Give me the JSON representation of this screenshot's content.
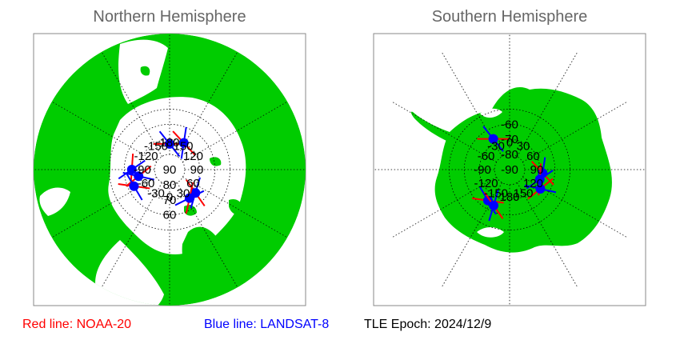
{
  "colors": {
    "land": "#00cc00",
    "water": "#ffffff",
    "grid": "#000000",
    "frame": "#888888",
    "noaa20": "#ff0000",
    "landsat8": "#0000ff",
    "satellite_dot": "#0000ff"
  },
  "north": {
    "title": "Northern Hemisphere",
    "lon_labels": [
      "180",
      "150",
      "-150",
      "120",
      "-120",
      "90",
      "-90",
      "60",
      "-60",
      "30",
      "-30",
      "0"
    ],
    "lat_labels": [
      "90",
      "80",
      "70",
      "60"
    ],
    "satellites": [
      {
        "lon": 180,
        "lat": 73
      },
      {
        "lon": 152,
        "lat": 70
      },
      {
        "lon": -90,
        "lat": 65
      },
      {
        "lon": -78,
        "lat": 69
      },
      {
        "lon": -65,
        "lat": 64
      },
      {
        "lon": 48,
        "lat": 67
      },
      {
        "lon": 35,
        "lat": 67
      }
    ]
  },
  "south": {
    "title": "Southern Hemisphere",
    "lon_labels": [
      "0",
      "30",
      "-30",
      "60",
      "-60",
      "90",
      "-90",
      "120",
      "-120",
      "150",
      "-150",
      "180"
    ],
    "lat_labels": [
      "-90",
      "-80",
      "-70",
      "-60"
    ],
    "satellites": [
      {
        "lon": -28,
        "lat": -67
      },
      {
        "lon": 96,
        "lat": -68
      },
      {
        "lon": 108,
        "lat": -69
      },
      {
        "lon": 122,
        "lat": -66
      },
      {
        "lon": -145,
        "lat": -65
      },
      {
        "lon": -156,
        "lat": -64
      }
    ]
  },
  "legend": {
    "red_label": "Red line: NOAA-20",
    "blue_label": "Blue line: LANDSAT-8",
    "epoch": "TLE Epoch: 2024/12/9"
  }
}
